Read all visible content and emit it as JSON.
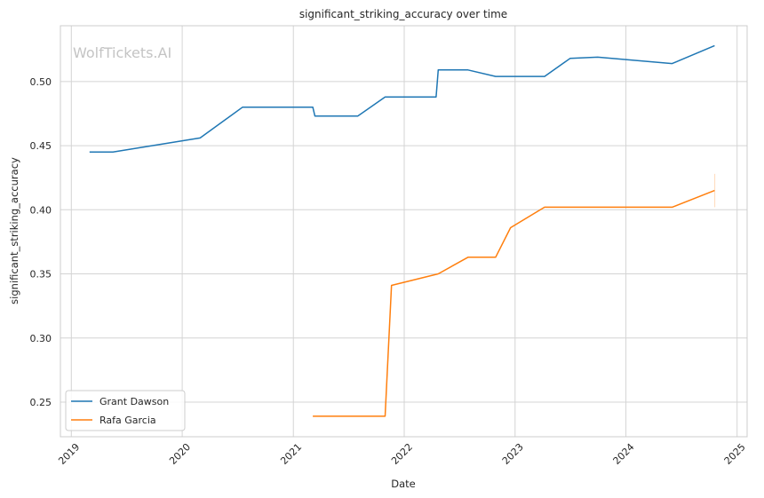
{
  "chart_data": {
    "type": "line",
    "title": "significant_striking_accuracy over time",
    "xlabel": "Date",
    "ylabel": "significant_striking_accuracy",
    "watermark": "WolfTickets.AI",
    "x_range": [
      "2018-11-26",
      "2025-02-03"
    ],
    "ylim": [
      0.223,
      0.5435
    ],
    "x_ticks": [
      "2019",
      "2020",
      "2021",
      "2022",
      "2023",
      "2024",
      "2025"
    ],
    "y_ticks": [
      "0.25",
      "0.30",
      "0.35",
      "0.40",
      "0.45",
      "0.50"
    ],
    "grid": true,
    "legend_position": "lower-left",
    "series": [
      {
        "name": "Grant Dawson",
        "color": "#1f77b4",
        "points": [
          [
            "2019-03-02",
            0.445
          ],
          [
            "2019-05-18",
            0.445
          ],
          [
            "2020-02-29",
            0.456
          ],
          [
            "2020-07-18",
            0.48
          ],
          [
            "2021-03-06",
            0.48
          ],
          [
            "2021-03-13",
            0.473
          ],
          [
            "2021-08-01",
            0.473
          ],
          [
            "2021-10-30",
            0.488
          ],
          [
            "2022-04-16",
            0.488
          ],
          [
            "2022-04-23",
            0.509
          ],
          [
            "2022-07-30",
            0.509
          ],
          [
            "2022-10-29",
            0.504
          ],
          [
            "2023-04-08",
            0.504
          ],
          [
            "2023-07-01",
            0.518
          ],
          [
            "2023-09-30",
            0.519
          ],
          [
            "2024-06-01",
            0.514
          ],
          [
            "2024-10-19",
            0.528
          ]
        ]
      },
      {
        "name": "Rafa Garcia",
        "color": "#ff7f0e",
        "points": [
          [
            "2021-03-06",
            0.239
          ],
          [
            "2021-10-30",
            0.239
          ],
          [
            "2021-11-20",
            0.341
          ],
          [
            "2022-04-23",
            0.35
          ],
          [
            "2022-07-30",
            0.363
          ],
          [
            "2022-10-29",
            0.363
          ],
          [
            "2022-12-17",
            0.386
          ],
          [
            "2023-04-08",
            0.402
          ],
          [
            "2024-06-01",
            0.402
          ],
          [
            "2024-10-19",
            0.415
          ]
        ],
        "error_band": {
          "x": "2024-10-19",
          "low": 0.402,
          "high": 0.428
        }
      }
    ]
  }
}
